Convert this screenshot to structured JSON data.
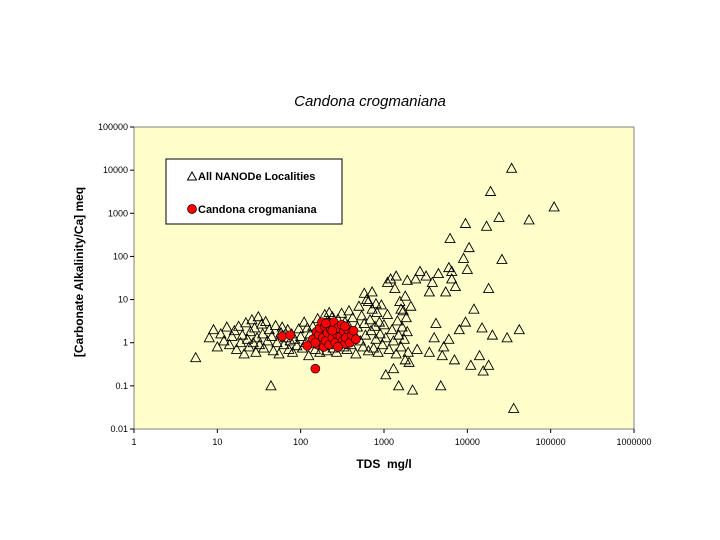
{
  "chart_data": {
    "type": "scatter",
    "title": "Candona crogmaniana",
    "xlabel": "TDS  mg/l",
    "ylabel": "[Carbonate Alkalinity/Ca] meq",
    "x_scale": "log",
    "y_scale": "log",
    "xlim": [
      1,
      1000000
    ],
    "ylim": [
      0.01,
      100000
    ],
    "x_tick_labels": [
      "1",
      "10",
      "100",
      "1000",
      "10000",
      "100000",
      "1000000"
    ],
    "y_tick_labels": [
      "0.01",
      "0.1",
      "1",
      "10",
      "100",
      "1000",
      "10000",
      "100000"
    ],
    "legend": {
      "placement": "upper-left inside plot",
      "entries": [
        "All NANODe Localities",
        "Candona crogmaniana"
      ]
    },
    "plot_background": "#ffffcc",
    "grid": false,
    "series": [
      {
        "name": "All NANODe Localities",
        "marker": "open-triangle",
        "color": "#000000",
        "points": [
          [
            5.5,
            0.45
          ],
          [
            8,
            1.3
          ],
          [
            9,
            2.0
          ],
          [
            10,
            0.8
          ],
          [
            11,
            1.6
          ],
          [
            12,
            1.1
          ],
          [
            13,
            2.3
          ],
          [
            14,
            0.9
          ],
          [
            15,
            1.4
          ],
          [
            16,
            1.9
          ],
          [
            17,
            0.7
          ],
          [
            18,
            2.4
          ],
          [
            19,
            1.0
          ],
          [
            20,
            1.5
          ],
          [
            21,
            0.55
          ],
          [
            22,
            2.9
          ],
          [
            23,
            1.2
          ],
          [
            24,
            0.8
          ],
          [
            25,
            1.8
          ],
          [
            26,
            3.4
          ],
          [
            27,
            1.0
          ],
          [
            28,
            2.2
          ],
          [
            29,
            0.6
          ],
          [
            30,
            1.3
          ],
          [
            31,
            4.0
          ],
          [
            32,
            0.9
          ],
          [
            34,
            2.7
          ],
          [
            35,
            1.6
          ],
          [
            36,
            0.75
          ],
          [
            38,
            3.1
          ],
          [
            40,
            1.1
          ],
          [
            42,
            2.0
          ],
          [
            44,
            0.1
          ],
          [
            45,
            1.4
          ],
          [
            47,
            0.65
          ],
          [
            50,
            2.5
          ],
          [
            52,
            1.0
          ],
          [
            55,
            0.55
          ],
          [
            58,
            1.7
          ],
          [
            60,
            2.3
          ],
          [
            63,
            0.9
          ],
          [
            66,
            1.3
          ],
          [
            70,
            2.0
          ],
          [
            72,
            0.7
          ],
          [
            75,
            1.1
          ],
          [
            78,
            1.6
          ],
          [
            80,
            0.6
          ],
          [
            85,
            1.2
          ],
          [
            90,
            0.85
          ],
          [
            95,
            2.1
          ],
          [
            100,
            1.4
          ],
          [
            105,
            0.75
          ],
          [
            110,
            3.0
          ],
          [
            115,
            1.0
          ],
          [
            120,
            2.2
          ],
          [
            125,
            0.5
          ],
          [
            130,
            1.6
          ],
          [
            135,
            0.95
          ],
          [
            140,
            2.4
          ],
          [
            145,
            1.2
          ],
          [
            150,
            0.7
          ],
          [
            155,
            1.8
          ],
          [
            160,
            3.6
          ],
          [
            165,
            1.1
          ],
          [
            170,
            0.6
          ],
          [
            175,
            2.6
          ],
          [
            180,
            1.4
          ],
          [
            185,
            0.85
          ],
          [
            190,
            2.0
          ],
          [
            195,
            4.5
          ],
          [
            200,
            1.2
          ],
          [
            205,
            0.65
          ],
          [
            210,
            3.2
          ],
          [
            215,
            1.6
          ],
          [
            220,
            5.0
          ],
          [
            225,
            0.9
          ],
          [
            230,
            2.8
          ],
          [
            235,
            1.3
          ],
          [
            240,
            4.0
          ],
          [
            245,
            0.75
          ],
          [
            250,
            2.2
          ],
          [
            260,
            1.5
          ],
          [
            270,
            0.6
          ],
          [
            280,
            3.5
          ],
          [
            290,
            1.0
          ],
          [
            300,
            2.5
          ],
          [
            310,
            4.8
          ],
          [
            320,
            1.2
          ],
          [
            330,
            0.8
          ],
          [
            340,
            3.0
          ],
          [
            350,
            1.8
          ],
          [
            360,
            0.7
          ],
          [
            370,
            2.6
          ],
          [
            380,
            5.5
          ],
          [
            390,
            1.3
          ],
          [
            400,
            0.9
          ],
          [
            420,
            3.8
          ],
          [
            440,
            1.6
          ],
          [
            460,
            0.55
          ],
          [
            480,
            2.3
          ],
          [
            500,
            7.0
          ],
          [
            520,
            1.1
          ],
          [
            540,
            4.2
          ],
          [
            560,
            0.8
          ],
          [
            580,
            2.8
          ],
          [
            600,
            1.5
          ],
          [
            620,
            10.0
          ],
          [
            650,
            0.65
          ],
          [
            680,
            3.4
          ],
          [
            700,
            1.9
          ],
          [
            720,
            6.0
          ],
          [
            750,
            0.75
          ],
          [
            780,
            2.4
          ],
          [
            800,
            1.2
          ],
          [
            820,
            5.0
          ],
          [
            850,
            0.6
          ],
          [
            880,
            3.0
          ],
          [
            900,
            1.6
          ],
          [
            930,
            7.5
          ],
          [
            960,
            0.9
          ],
          [
            1000,
            2.6
          ],
          [
            1050,
            1.3
          ],
          [
            1100,
            4.5
          ],
          [
            1150,
            0.7
          ],
          [
            1200,
            30.0
          ],
          [
            1250,
            2.0
          ],
          [
            1300,
            1.1
          ],
          [
            1350,
            18.0
          ],
          [
            1400,
            0.55
          ],
          [
            1450,
            3.2
          ],
          [
            1500,
            1.5
          ],
          [
            1550,
            9.0
          ],
          [
            1600,
            0.8
          ],
          [
            1650,
            2.3
          ],
          [
            1700,
            5.5
          ],
          [
            1750,
            1.2
          ],
          [
            1800,
            0.4
          ],
          [
            1850,
            3.8
          ],
          [
            1900,
            1.8
          ],
          [
            1950,
            0.6
          ],
          [
            580,
            14.0
          ],
          [
            650,
            9.0
          ],
          [
            720,
            15.0
          ],
          [
            800,
            8.0
          ],
          [
            1100,
            25.0
          ],
          [
            1400,
            35.0
          ],
          [
            1600,
            6.0
          ],
          [
            1800,
            12.0
          ],
          [
            1900,
            28.0
          ],
          [
            1050,
            0.18
          ],
          [
            1300,
            0.25
          ],
          [
            1500,
            0.1
          ],
          [
            2000,
            0.35
          ],
          [
            2200,
            0.08
          ],
          [
            2100,
            7.0
          ],
          [
            2400,
            30.0
          ],
          [
            2700,
            45.0
          ],
          [
            3200,
            35.0
          ],
          [
            3500,
            0.6
          ],
          [
            3800,
            25.0
          ],
          [
            4000,
            1.3
          ],
          [
            4200,
            2.8
          ],
          [
            4500,
            40.0
          ],
          [
            4800,
            0.1
          ],
          [
            5000,
            0.5
          ],
          [
            5500,
            15.0
          ],
          [
            6000,
            1.2
          ],
          [
            6500,
            30.0
          ],
          [
            7000,
            0.4
          ],
          [
            6200,
            260.0
          ],
          [
            6000,
            55.0
          ],
          [
            6500,
            45.0
          ],
          [
            7200,
            20.0
          ],
          [
            8000,
            2.0
          ],
          [
            9000,
            90.0
          ],
          [
            9500,
            580.0
          ],
          [
            10000,
            50.0
          ],
          [
            10500,
            160.0
          ],
          [
            11000,
            0.3
          ],
          [
            12000,
            6.0
          ],
          [
            14000,
            0.5
          ],
          [
            15000,
            2.2
          ],
          [
            15500,
            0.22
          ],
          [
            17000,
            500.0
          ],
          [
            18000,
            0.3
          ],
          [
            19000,
            3200.0
          ],
          [
            20000,
            1.5
          ],
          [
            24000,
            800.0
          ],
          [
            26000,
            85.0
          ],
          [
            30000,
            1.3
          ],
          [
            34000,
            11000.0
          ],
          [
            36000,
            0.03
          ],
          [
            42000,
            2.0
          ],
          [
            55000,
            700.0
          ],
          [
            110000,
            1400.0
          ],
          [
            18000,
            18.0
          ],
          [
            9500,
            3.0
          ],
          [
            3500,
            15.0
          ],
          [
            2500,
            0.7
          ],
          [
            5200,
            0.8
          ]
        ]
      },
      {
        "name": "Candona crogmaniana",
        "marker": "filled-circle",
        "color": "#ff0000",
        "points": [
          [
            60,
            1.4
          ],
          [
            75,
            1.5
          ],
          [
            120,
            0.85
          ],
          [
            140,
            1.2
          ],
          [
            150,
            0.25
          ],
          [
            155,
            1.8
          ],
          [
            160,
            0.9
          ],
          [
            165,
            1.5
          ],
          [
            170,
            2.2
          ],
          [
            175,
            1.0
          ],
          [
            180,
            3.0
          ],
          [
            185,
            1.3
          ],
          [
            190,
            0.8
          ],
          [
            195,
            2.4
          ],
          [
            200,
            1.1
          ],
          [
            210,
            1.7
          ],
          [
            220,
            0.9
          ],
          [
            230,
            2.0
          ],
          [
            240,
            1.3
          ],
          [
            250,
            3.0
          ],
          [
            260,
            1.0
          ],
          [
            270,
            1.6
          ],
          [
            280,
            2.2
          ],
          [
            290,
            0.85
          ],
          [
            300,
            1.4
          ],
          [
            310,
            2.6
          ],
          [
            320,
            1.1
          ],
          [
            330,
            1.8
          ],
          [
            340,
            0.95
          ],
          [
            350,
            1.3
          ],
          [
            370,
            2.0
          ],
          [
            390,
            1.0
          ],
          [
            410,
            1.5
          ],
          [
            430,
            1.9
          ],
          [
            460,
            1.2
          ],
          [
            200,
            2.8
          ],
          [
            280,
            0.8
          ],
          [
            340,
            2.4
          ],
          [
            240,
            1.9
          ],
          [
            150,
            1.0
          ]
        ]
      }
    ]
  }
}
